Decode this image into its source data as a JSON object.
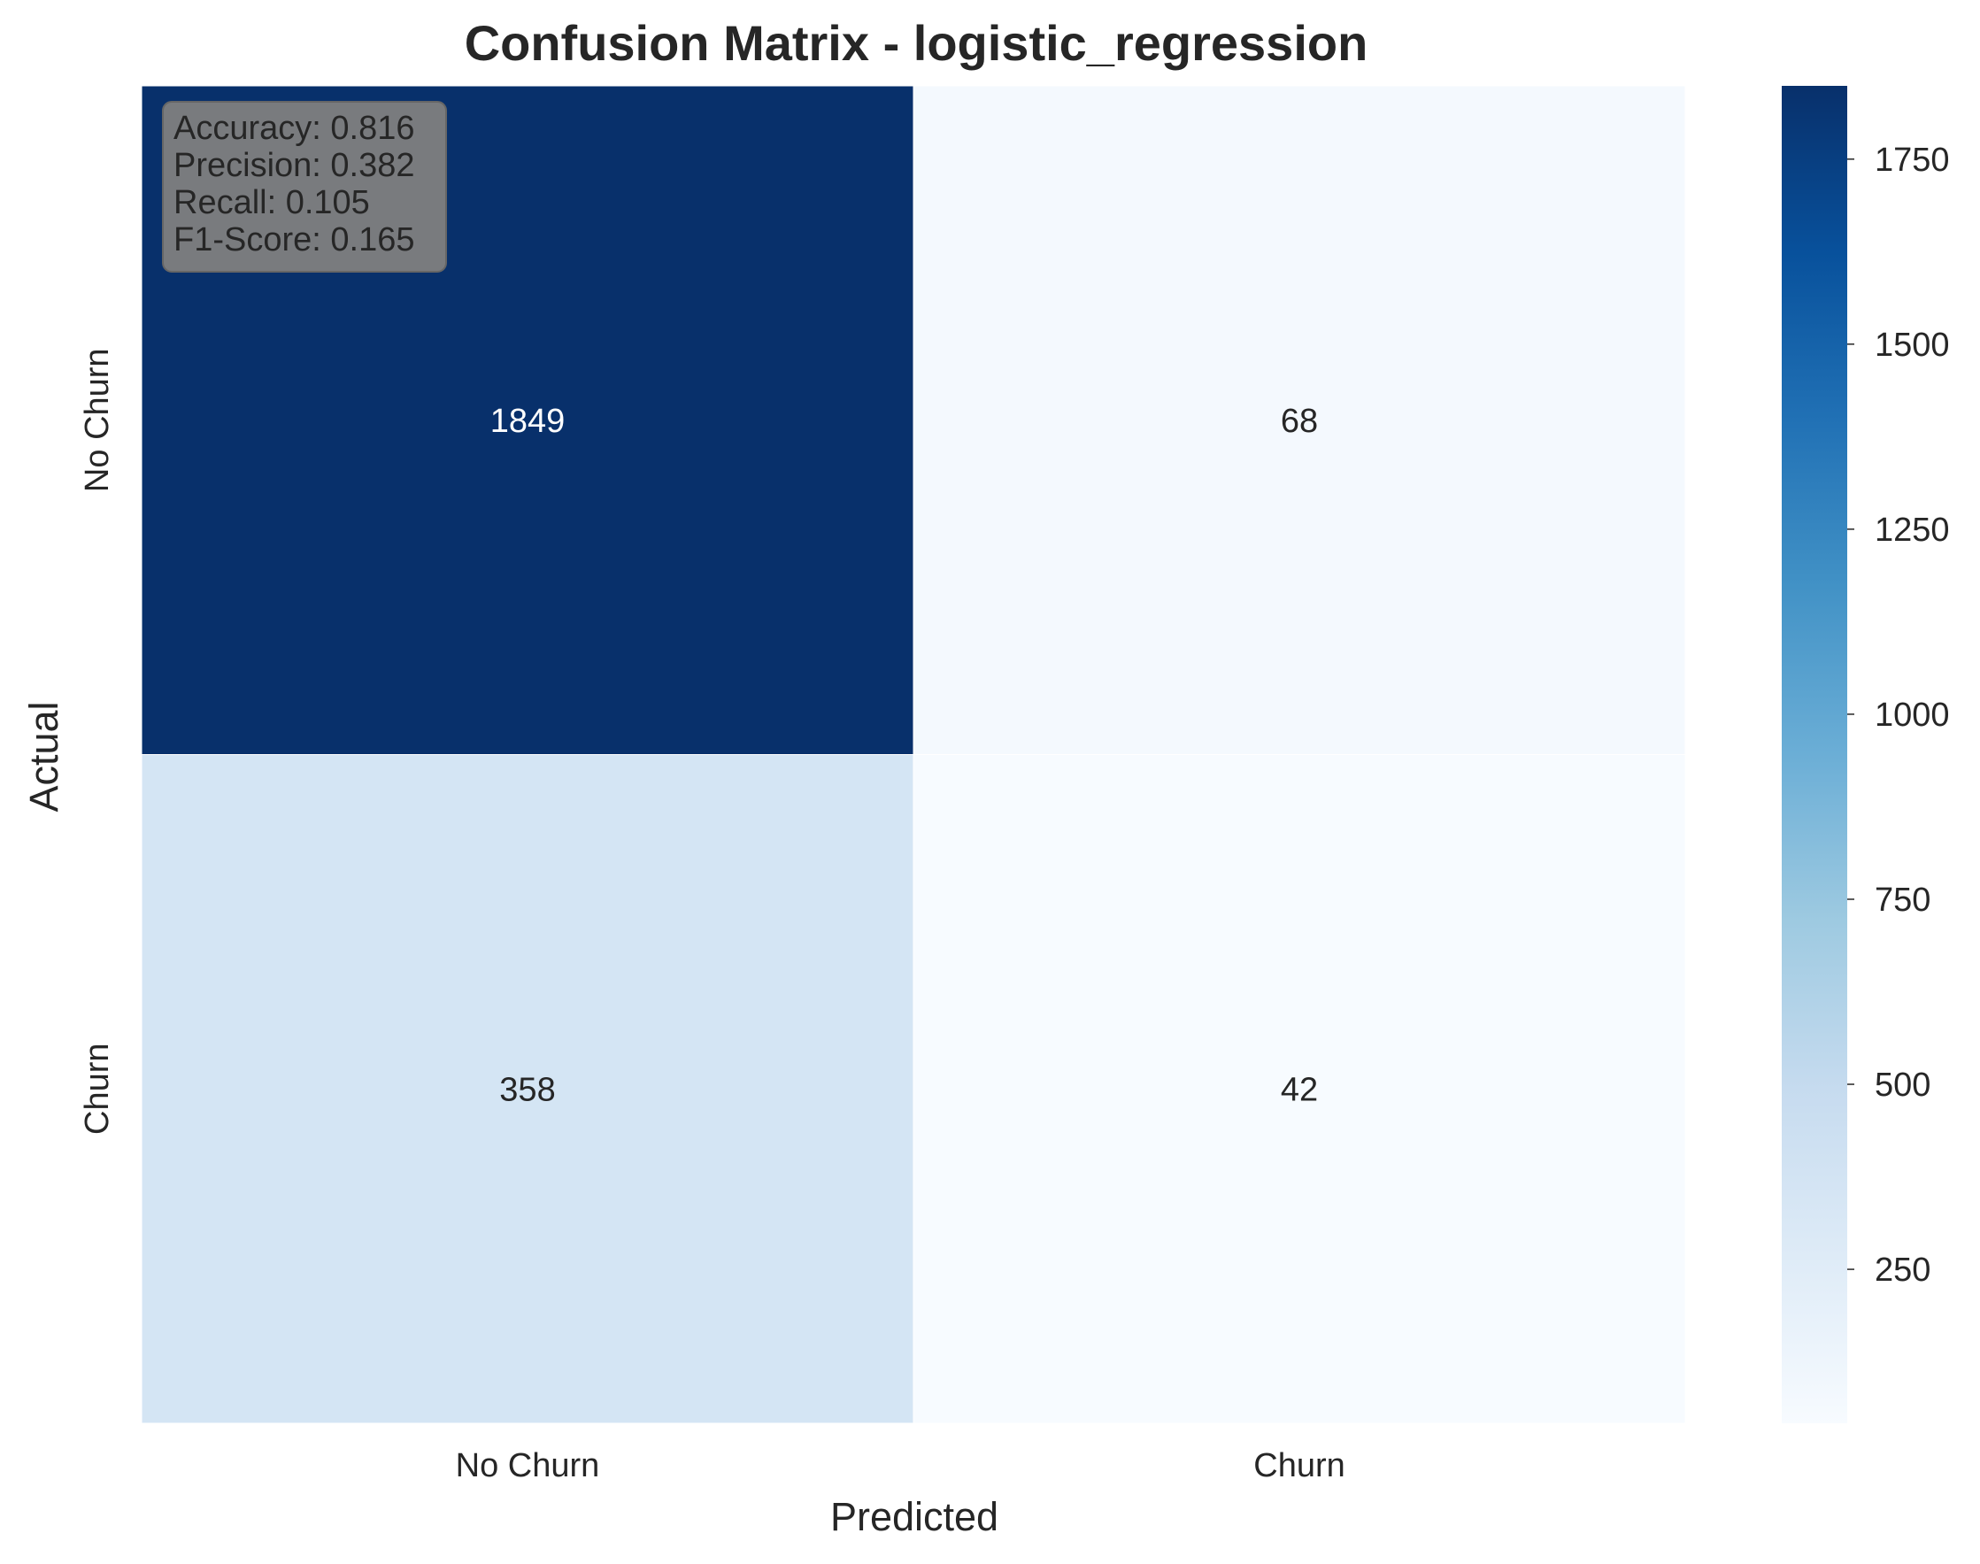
{
  "chart_data": {
    "type": "heatmap",
    "title": "Confusion Matrix - logistic_regression",
    "xlabel": "Predicted",
    "ylabel": "Actual",
    "x_categories": [
      "No Churn",
      "Churn"
    ],
    "y_categories": [
      "No Churn",
      "Churn"
    ],
    "values": [
      [
        1849,
        68
      ],
      [
        358,
        42
      ]
    ],
    "colormap": "Blues",
    "colorbar": {
      "range": [
        42,
        1849
      ],
      "ticks": [
        250,
        500,
        750,
        1000,
        1250,
        1500,
        1750
      ]
    },
    "annotation": [
      "Accuracy: 0.816",
      "Precision: 0.382",
      "Recall: 0.105",
      "F1-Score: 0.165"
    ]
  }
}
